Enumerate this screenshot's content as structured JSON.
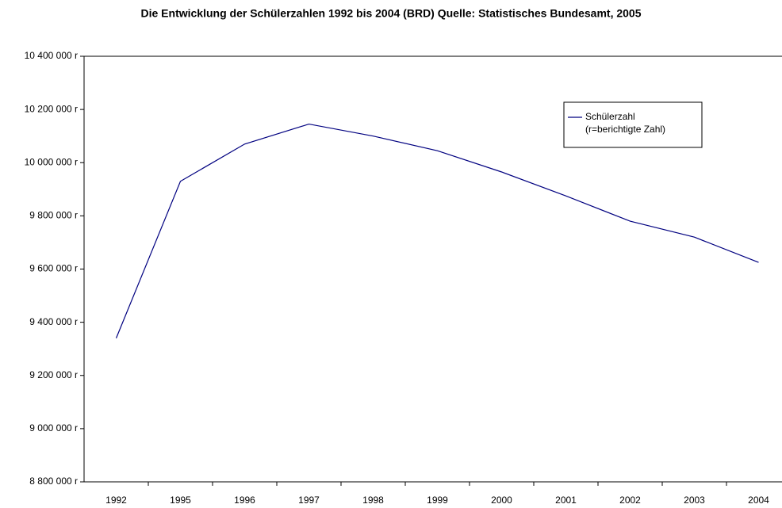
{
  "chart_data": {
    "type": "line",
    "title": "Die Entwicklung der Schülerzahlen 1992 bis 2004 (BRD) Quelle: Statistisches Bundesamt, 2005",
    "categories": [
      "1992",
      "1995",
      "1996",
      "1997",
      "1998",
      "1999",
      "2000",
      "2001",
      "2002",
      "2003",
      "2004"
    ],
    "series": [
      {
        "name": "Schülerzahl",
        "color": "#000080",
        "values": [
          9340000,
          9930000,
          10070000,
          10145000,
          10100000,
          10045000,
          9965000,
          9875000,
          9780000,
          9720000,
          9625000
        ]
      }
    ],
    "legend_note": "(r=berichtigte Zahl)",
    "ylim": [
      8800000,
      10400000
    ],
    "yticks": [
      {
        "value": 8800000,
        "label": "8 800 000 r"
      },
      {
        "value": 9000000,
        "label": "9 000 000 r"
      },
      {
        "value": 9200000,
        "label": "9 200 000 r"
      },
      {
        "value": 9400000,
        "label": "9 400 000 r"
      },
      {
        "value": 9600000,
        "label": "9 600 000 r"
      },
      {
        "value": 9800000,
        "label": "9 800 000 r"
      },
      {
        "value": 10000000,
        "label": "10 000 000 r"
      },
      {
        "value": 10200000,
        "label": "10 200 000 r"
      },
      {
        "value": 10400000,
        "label": "10 400 000 r"
      }
    ],
    "legend": "upper right"
  }
}
